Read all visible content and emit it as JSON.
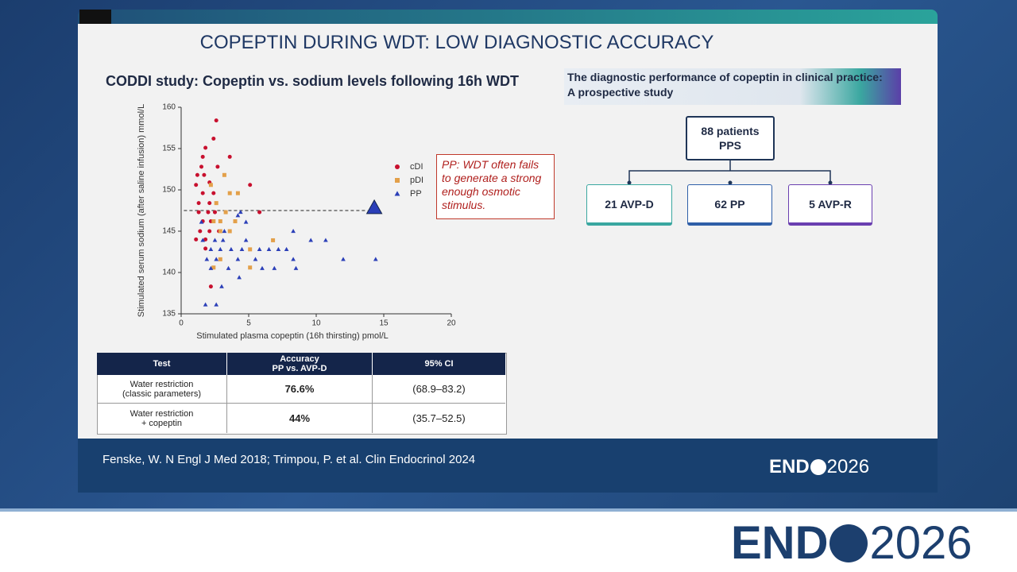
{
  "slide_title": "COPEPTIN DURING WDT: LOW DIAGNOSTIC ACCURACY",
  "chart_data": {
    "type": "scatter",
    "title": "CODDI study: Copeptin vs. sodium levels following 16h WDT",
    "xlabel": "Stimulated plasma copeptin (16h thirsting) pmol/L",
    "ylabel": "Stimulated serum sodium (after saline infusion) mmol/L",
    "xlim": [
      0,
      20
    ],
    "xticks": [
      0,
      5,
      10,
      15,
      20
    ],
    "ylim": [
      135,
      160
    ],
    "yticks": [
      135,
      140,
      145,
      150,
      155,
      160
    ],
    "legend": "right",
    "series": [
      {
        "name": "cDI",
        "color": "#c8102e",
        "marker": "circle",
        "x": [
          2.6,
          2.4,
          1.8,
          1.6,
          3.6,
          1.5,
          2.7,
          1.2,
          1.7,
          2.1,
          1.1,
          5.1,
          1.6,
          2.4,
          1.3,
          2.1,
          1.3,
          2.0,
          2.5,
          5.8,
          1.6,
          2.2,
          1.4,
          2.1,
          2.8,
          1.1,
          1.8,
          1.8,
          2.2
        ],
        "y": [
          158.4,
          156.2,
          155.1,
          154.0,
          154.0,
          152.8,
          152.8,
          151.8,
          151.8,
          150.9,
          150.6,
          150.6,
          149.6,
          149.6,
          148.4,
          148.4,
          147.3,
          147.3,
          147.3,
          147.3,
          146.2,
          146.2,
          145.0,
          145.0,
          145.0,
          144.0,
          144.0,
          142.9,
          138.3
        ]
      },
      {
        "name": "pDI",
        "color": "#e3a04a",
        "marker": "square",
        "x": [
          3.2,
          2.2,
          3.6,
          4.2,
          2.6,
          3.3,
          4.0,
          2.4,
          2.9,
          3.6,
          2.9,
          6.8,
          5.1,
          2.9,
          2.4,
          5.1
        ],
        "y": [
          151.8,
          150.6,
          149.6,
          149.6,
          148.4,
          147.3,
          146.2,
          146.2,
          146.2,
          145.0,
          145.0,
          143.9,
          142.8,
          141.6,
          140.6,
          140.6
        ]
      },
      {
        "name": "PP",
        "color": "#2b3fb8",
        "marker": "triangle",
        "x": [
          4.4,
          4.2,
          1.5,
          4.8,
          3.2,
          8.3,
          1.6,
          2.5,
          3.1,
          4.8,
          9.6,
          10.7,
          2.2,
          2.9,
          3.7,
          4.5,
          5.8,
          6.5,
          7.2,
          7.8,
          1.9,
          2.6,
          4.2,
          5.5,
          8.3,
          12.0,
          14.4,
          2.2,
          3.5,
          6.0,
          6.9,
          8.5,
          4.3,
          3.0,
          1.8,
          2.6
        ],
        "y": [
          147.3,
          146.9,
          146.1,
          146.1,
          145.0,
          145.0,
          143.9,
          143.9,
          143.9,
          143.9,
          143.9,
          143.9,
          142.8,
          142.8,
          142.8,
          142.8,
          142.8,
          142.8,
          142.8,
          142.8,
          141.6,
          141.6,
          141.6,
          141.6,
          141.6,
          141.6,
          141.6,
          140.5,
          140.5,
          140.5,
          140.5,
          140.5,
          139.4,
          138.3,
          136.1,
          136.1
        ]
      }
    ],
    "reference_line": {
      "y": 147.5,
      "x_start": 0.2,
      "x_end": 13.8
    },
    "highlight": {
      "x": 14.3,
      "y": 147.8,
      "color": "#2b3fb8"
    },
    "annotation": "PP: WDT often fails to generate a strong enough osmotic stimulus."
  },
  "table": {
    "header": [
      "Test",
      "Accuracy\nPP vs. AVP-D",
      "95% CI"
    ],
    "rows": [
      [
        "Water restriction\n(classic parameters)",
        "76.6%",
        "(68.9–83.2)"
      ],
      [
        "Water restriction\n+ copeptin",
        "44%",
        "(35.7–52.5)"
      ]
    ]
  },
  "diagram": {
    "title": "The diagnostic performance of copeptin in clinical practice:\nA prospective study",
    "root": "88 patients\nPPS",
    "children": [
      "21 AVP-D",
      "62 PP",
      "5 AVP-R"
    ]
  },
  "footer": {
    "citation": "Fenske, W. N Engl J Med 2018; Trimpou, P. et al. Clin Endocrinol 2024",
    "logo_left": "END",
    "logo_right": "2026"
  }
}
